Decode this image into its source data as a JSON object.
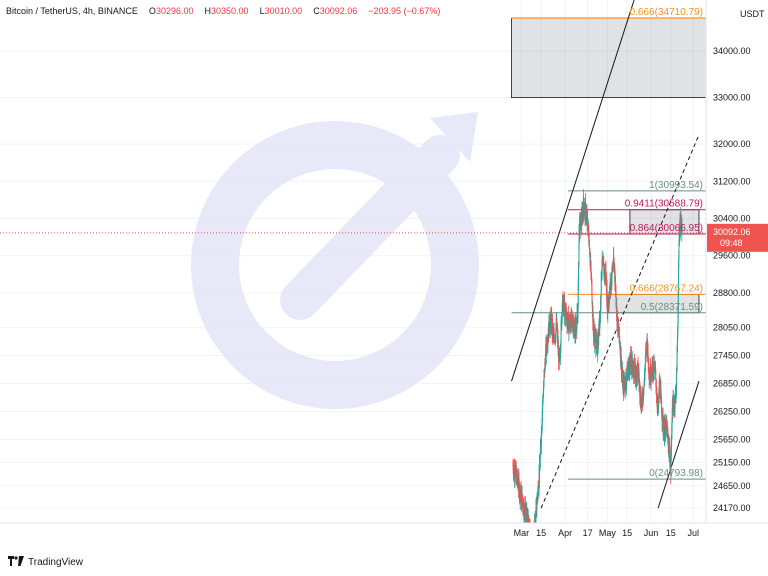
{
  "header": {
    "symbol": "Bitcoin / TetherUS, 4h, BINANCE",
    "open_label": "O",
    "open": "30296.00",
    "high_label": "H",
    "high": "30350.00",
    "low_label": "L",
    "low": "30010.00",
    "close_label": "C",
    "close": "30092.06",
    "change": "−203.95 (−0.67%)"
  },
  "footer": {
    "brand": "TradingView"
  },
  "colors": {
    "up": "#26a69a",
    "down": "#ef5350",
    "fib": "#6a8f80",
    "red": "#c2185b",
    "orange": "#f7931a",
    "grid": "#f0f3fa",
    "watermark": "#dfe2f7"
  },
  "icons": {
    "logo": "tradingview-logo-icon",
    "watermark": "tradingview-watermark-icon"
  },
  "chart_data": {
    "type": "candlestick",
    "currency": "USDT",
    "y_tick_labels": [
      "34000.00",
      "33000.00",
      "32000.00",
      "31200.00",
      "30400.00",
      "29600.00",
      "28800.00",
      "28050.00",
      "27450.00",
      "26850.00",
      "26250.00",
      "25650.00",
      "25150.00",
      "24650.00",
      "24170.00"
    ],
    "y_ticks": [
      34000,
      33000,
      32000,
      31200,
      30400,
      29600,
      28800,
      28050,
      27450,
      26850,
      26250,
      25650,
      25150,
      24650,
      24170
    ],
    "x_tick_labels": [
      "Mar",
      "15",
      "Apr",
      "17",
      "May",
      "15",
      "Jun",
      "15",
      "Jul"
    ],
    "x_ticks": [
      "2023-03-01",
      "2023-03-15",
      "2023-04-01",
      "2023-04-17",
      "2023-05-01",
      "2023-05-15",
      "2023-06-01",
      "2023-06-15",
      "2023-07-01"
    ],
    "x_range": [
      "2022-02-24",
      "2023-07-10"
    ],
    "y_range": [
      23850,
      35100
    ],
    "last_price": {
      "value": 30092.06,
      "label": "30092.06",
      "countdown": "09:48"
    },
    "fib_levels": [
      {
        "label": "0.666(34710.79)",
        "price": 34710.79,
        "start": "2023-02-22",
        "color": "orange"
      },
      {
        "label": "1(30993.54)",
        "price": 30993.54,
        "start": "2023-04-03",
        "color": "fib"
      },
      {
        "label": "0.9411(30588.79)",
        "price": 30588.79,
        "start": "2023-04-03",
        "color": "red"
      },
      {
        "label": "0.864(30066.95)",
        "price": 30066.95,
        "start": "2023-04-03",
        "color": "red"
      },
      {
        "label": "0.666(28767.24)",
        "price": 28767.24,
        "start": "2023-04-03",
        "color": "orange"
      },
      {
        "label": "0.5(28371.59)",
        "price": 28371.59,
        "start": "2023-02-22",
        "color": "fib"
      },
      {
        "label": "0(24793.98)",
        "price": 24793.98,
        "start": "2023-04-03",
        "color": "fib"
      }
    ],
    "zones": [
      {
        "name": "upper-gray-zone",
        "from": "2023-02-22",
        "to": "2023-07-10",
        "top": 34710.79,
        "bottom": 33000
      },
      {
        "name": "resistance-box",
        "from": "2023-05-17",
        "to": "2023-07-05",
        "top": 30588.79,
        "bottom": 30066.95
      },
      {
        "name": "support-box",
        "from": "2023-05-02",
        "to": "2023-07-05",
        "top": 28767.24,
        "bottom": 28371.59
      }
    ],
    "trendlines": [
      {
        "name": "channel-upper-solid",
        "style": "solid",
        "p1": [
          "2023-02-22",
          26900
        ],
        "p2": [
          "2023-05-20",
          35100
        ]
      },
      {
        "name": "channel-mid-dashed",
        "style": "dashed",
        "p1": [
          "2023-03-15",
          24170
        ],
        "p2": [
          "2023-07-05",
          32200
        ]
      },
      {
        "name": "channel-lower-solid",
        "style": "solid",
        "p1": [
          "2023-06-06",
          24170
        ],
        "p2": [
          "2023-07-05",
          26900
        ]
      }
    ],
    "path": [
      [
        "2023-02-23",
        25100
      ],
      [
        "2023-02-26",
        24800
      ],
      [
        "2023-03-01",
        24400
      ],
      [
        "2023-03-05",
        23950
      ],
      [
        "2023-03-09",
        23300
      ],
      [
        "2023-03-12",
        24300
      ],
      [
        "2023-03-14",
        25000
      ],
      [
        "2023-03-16",
        26400
      ],
      [
        "2023-03-18",
        27400
      ],
      [
        "2023-03-20",
        28000
      ],
      [
        "2023-03-22",
        28200
      ],
      [
        "2023-03-24",
        27800
      ],
      [
        "2023-03-26",
        28100
      ],
      [
        "2023-03-28",
        27200
      ],
      [
        "2023-03-30",
        28600
      ],
      [
        "2023-04-02",
        28300
      ],
      [
        "2023-04-04",
        28100
      ],
      [
        "2023-04-06",
        28200
      ],
      [
        "2023-04-08",
        28000
      ],
      [
        "2023-04-10",
        28300
      ],
      [
        "2023-04-11",
        30200
      ],
      [
        "2023-04-13",
        30400
      ],
      [
        "2023-04-14",
        30700
      ],
      [
        "2023-04-16",
        30500
      ],
      [
        "2023-04-18",
        30000
      ],
      [
        "2023-04-19",
        29400
      ],
      [
        "2023-04-20",
        28900
      ],
      [
        "2023-04-21",
        28000
      ],
      [
        "2023-04-24",
        27600
      ],
      [
        "2023-04-26",
        28400
      ],
      [
        "2023-04-27",
        29400
      ],
      [
        "2023-04-28",
        29300
      ],
      [
        "2023-04-30",
        29200
      ],
      [
        "2023-05-01",
        28500
      ],
      [
        "2023-05-03",
        28900
      ],
      [
        "2023-05-05",
        29400
      ],
      [
        "2023-05-06",
        29400
      ],
      [
        "2023-05-08",
        28200
      ],
      [
        "2023-05-10",
        27700
      ],
      [
        "2023-05-12",
        26800
      ],
      [
        "2023-05-14",
        26900
      ],
      [
        "2023-05-16",
        27200
      ],
      [
        "2023-05-18",
        27300
      ],
      [
        "2023-05-20",
        27100
      ],
      [
        "2023-05-23",
        27100
      ],
      [
        "2023-05-25",
        26400
      ],
      [
        "2023-05-27",
        26800
      ],
      [
        "2023-05-29",
        27800
      ],
      [
        "2023-05-31",
        27000
      ],
      [
        "2023-06-02",
        27200
      ],
      [
        "2023-06-04",
        27100
      ],
      [
        "2023-06-06",
        26200
      ],
      [
        "2023-06-07",
        26900
      ],
      [
        "2023-06-08",
        26500
      ],
      [
        "2023-06-10",
        25800
      ],
      [
        "2023-06-12",
        25900
      ],
      [
        "2023-06-14",
        25400
      ],
      [
        "2023-06-15",
        24950
      ],
      [
        "2023-06-16",
        26300
      ],
      [
        "2023-06-18",
        26500
      ],
      [
        "2023-06-19",
        26800
      ],
      [
        "2023-06-20",
        28200
      ],
      [
        "2023-06-21",
        30100
      ],
      [
        "2023-06-22",
        30400
      ],
      [
        "2023-06-23",
        30092
      ]
    ]
  }
}
